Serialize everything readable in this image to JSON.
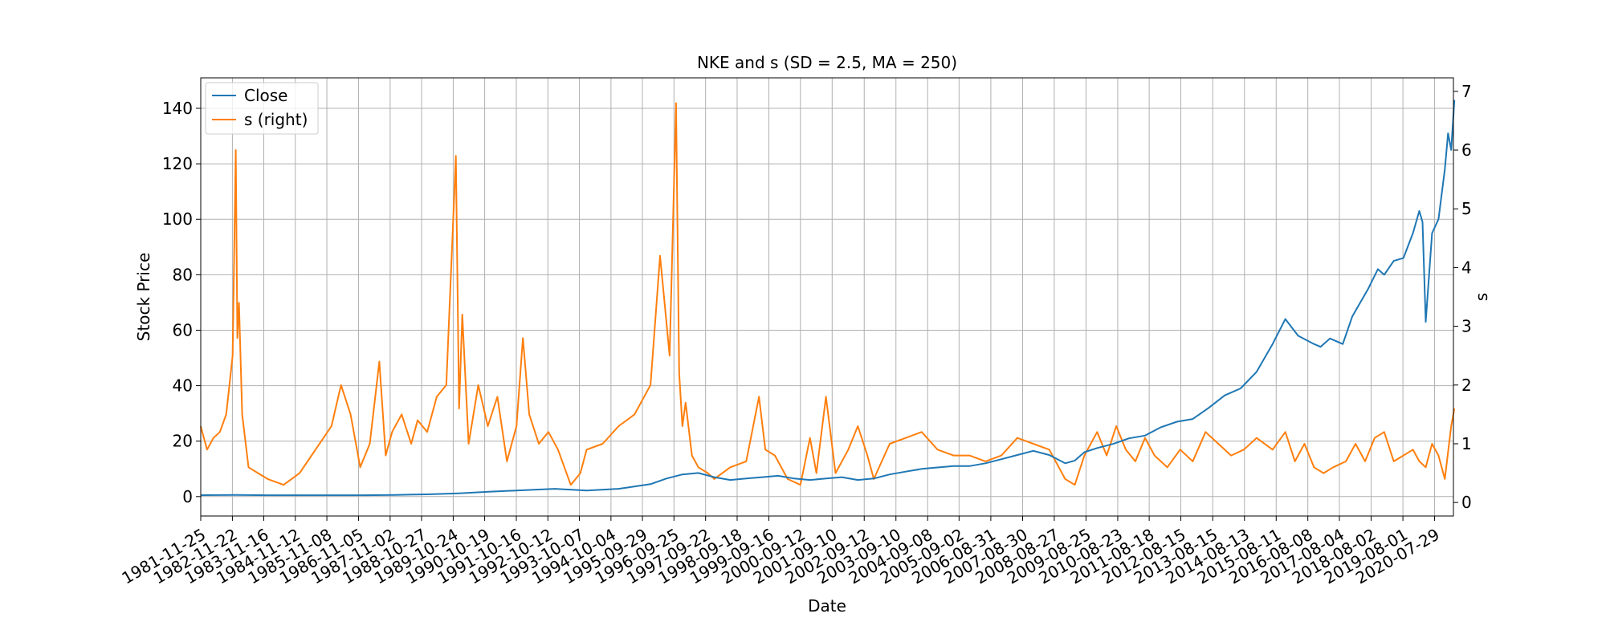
{
  "chart_data": {
    "type": "line",
    "title": "NKE and s (SD = 2.5, MA = 250)",
    "xlabel": "Date",
    "ylabel": "Stock Price",
    "y2label": "s",
    "grid": true,
    "legend_position": "top-left",
    "xlim": [
      "1981-11-25",
      "2021-03-01"
    ],
    "ylim": [
      -7,
      151
    ],
    "y2lim": [
      -0.23,
      7.23
    ],
    "yticks": [
      0,
      20,
      40,
      60,
      80,
      100,
      120,
      140
    ],
    "y2ticks": [
      0,
      1,
      2,
      3,
      4,
      5,
      6,
      7
    ],
    "xtick_labels": [
      "1981-11-25",
      "1982-11-22",
      "1983-11-16",
      "1984-11-12",
      "1985-11-08",
      "1986-11-05",
      "1987-11-02",
      "1988-10-27",
      "1989-10-24",
      "1990-10-19",
      "1991-10-16",
      "1992-10-12",
      "1993-10-07",
      "1994-10-04",
      "1995-09-29",
      "1996-09-25",
      "1997-09-22",
      "1998-09-18",
      "1999-09-16",
      "2000-09-12",
      "2001-09-10",
      "2002-09-12",
      "2003-09-10",
      "2004-09-08",
      "2005-09-02",
      "2006-08-31",
      "2007-08-30",
      "2008-08-27",
      "2009-08-25",
      "2010-08-23",
      "2011-08-18",
      "2012-08-15",
      "2013-08-15",
      "2014-08-13",
      "2015-08-11",
      "2016-08-08",
      "2017-08-04",
      "2018-08-02",
      "2019-08-01",
      "2020-07-29"
    ],
    "series": [
      {
        "name": "Close",
        "axis": "left",
        "color": "#1f77b4",
        "x": [
          1981.9,
          1983.0,
          1984.0,
          1985.0,
          1986.0,
          1987.0,
          1988.0,
          1989.0,
          1990.0,
          1991.0,
          1992.0,
          1993.0,
          1994.0,
          1995.0,
          1996.0,
          1996.5,
          1997.0,
          1997.5,
          1998.0,
          1998.5,
          1999.0,
          1999.5,
          2000.0,
          2000.5,
          2001.0,
          2001.5,
          2002.0,
          2002.5,
          2003.0,
          2003.5,
          2004.0,
          2004.5,
          2005.0,
          2005.5,
          2006.0,
          2006.5,
          2007.0,
          2007.5,
          2008.0,
          2008.5,
          2009.0,
          2009.3,
          2009.6,
          2010.0,
          2010.5,
          2011.0,
          2011.5,
          2012.0,
          2012.5,
          2013.0,
          2013.5,
          2014.0,
          2014.5,
          2015.0,
          2015.5,
          2015.9,
          2016.3,
          2016.8,
          2017.0,
          2017.3,
          2017.7,
          2018.0,
          2018.5,
          2018.8,
          2019.0,
          2019.3,
          2019.6,
          2019.9,
          2020.1,
          2020.2,
          2020.3,
          2020.5,
          2020.7,
          2020.9,
          2021.0,
          2021.1,
          2021.2
        ],
        "values": [
          0.5,
          0.6,
          0.5,
          0.5,
          0.5,
          0.5,
          0.6,
          0.8,
          1.2,
          1.8,
          2.3,
          2.8,
          2.2,
          2.8,
          4.5,
          6.5,
          8.0,
          8.5,
          7.0,
          6.0,
          6.5,
          7.0,
          7.5,
          6.5,
          6.0,
          6.5,
          7.0,
          6.0,
          6.5,
          8.0,
          9.0,
          10.0,
          10.5,
          11.0,
          11.0,
          12.0,
          13.5,
          15.0,
          16.5,
          15.0,
          12.0,
          13.0,
          16.0,
          17.5,
          19.0,
          21.0,
          22.0,
          25.0,
          27.0,
          28.0,
          32.0,
          36.5,
          39.0,
          45.0,
          55.0,
          64.0,
          58.0,
          55.0,
          54.0,
          57.0,
          55.0,
          65.0,
          75.0,
          82.0,
          80.0,
          85.0,
          86.0,
          95.0,
          103.0,
          99.0,
          63.0,
          95.0,
          100.0,
          118.0,
          131.0,
          125.0,
          143.0
        ]
      },
      {
        "name": "s (right)",
        "axis": "right",
        "color": "#ff7f0e",
        "x": [
          1981.9,
          1982.1,
          1982.3,
          1982.5,
          1982.7,
          1982.9,
          1983.0,
          1983.05,
          1983.1,
          1983.2,
          1983.4,
          1983.7,
          1984.0,
          1984.5,
          1985.0,
          1985.5,
          1986.0,
          1986.3,
          1986.6,
          1986.9,
          1987.2,
          1987.5,
          1987.7,
          1987.9,
          1988.2,
          1988.5,
          1988.7,
          1989.0,
          1989.3,
          1989.6,
          1989.9,
          1990.0,
          1990.1,
          1990.3,
          1990.6,
          1990.9,
          1991.2,
          1991.5,
          1991.8,
          1992.0,
          1992.2,
          1992.5,
          1992.8,
          1993.1,
          1993.5,
          1993.8,
          1994.0,
          1994.5,
          1995.0,
          1995.5,
          1996.0,
          1996.3,
          1996.6,
          1996.8,
          1996.9,
          1997.0,
          1997.1,
          1997.3,
          1997.5,
          1997.8,
          1998.0,
          1998.5,
          1999.0,
          1999.4,
          1999.6,
          1999.9,
          2000.3,
          2000.7,
          2001.0,
          2001.2,
          2001.5,
          2001.8,
          2002.2,
          2002.5,
          2002.8,
          2003.0,
          2003.5,
          2004.0,
          2004.5,
          2005.0,
          2005.5,
          2006.0,
          2006.5,
          2007.0,
          2007.5,
          2008.0,
          2008.5,
          2008.8,
          2009.0,
          2009.3,
          2009.6,
          2010.0,
          2010.3,
          2010.6,
          2010.9,
          2011.2,
          2011.5,
          2011.8,
          2012.2,
          2012.6,
          2013.0,
          2013.4,
          2013.8,
          2014.2,
          2014.6,
          2015.0,
          2015.5,
          2015.9,
          2016.2,
          2016.5,
          2016.8,
          2017.1,
          2017.4,
          2017.8,
          2018.1,
          2018.4,
          2018.7,
          2019.0,
          2019.3,
          2019.6,
          2019.9,
          2020.1,
          2020.3,
          2020.5,
          2020.7,
          2020.9,
          2021.1,
          2021.2
        ],
        "values": [
          1.3,
          0.9,
          1.1,
          1.2,
          1.5,
          2.5,
          6.0,
          2.8,
          3.4,
          1.5,
          0.6,
          0.5,
          0.4,
          0.3,
          0.5,
          0.9,
          1.3,
          2.0,
          1.5,
          0.6,
          1.0,
          2.4,
          0.8,
          1.2,
          1.5,
          1.0,
          1.4,
          1.2,
          1.8,
          2.0,
          5.9,
          1.6,
          3.2,
          1.0,
          2.0,
          1.3,
          1.8,
          0.7,
          1.3,
          2.8,
          1.5,
          1.0,
          1.2,
          0.9,
          0.3,
          0.5,
          0.9,
          1.0,
          1.3,
          1.5,
          2.0,
          4.2,
          2.5,
          6.8,
          2.2,
          1.3,
          1.7,
          0.8,
          0.6,
          0.5,
          0.4,
          0.6,
          0.7,
          1.8,
          0.9,
          0.8,
          0.4,
          0.3,
          1.1,
          0.5,
          1.8,
          0.5,
          0.9,
          1.3,
          0.8,
          0.4,
          1.0,
          1.1,
          1.2,
          0.9,
          0.8,
          0.8,
          0.7,
          0.8,
          1.1,
          1.0,
          0.9,
          0.6,
          0.4,
          0.3,
          0.8,
          1.2,
          0.8,
          1.3,
          0.9,
          0.7,
          1.1,
          0.8,
          0.6,
          0.9,
          0.7,
          1.2,
          1.0,
          0.8,
          0.9,
          1.1,
          0.9,
          1.2,
          0.7,
          1.0,
          0.6,
          0.5,
          0.6,
          0.7,
          1.0,
          0.7,
          1.1,
          1.2,
          0.7,
          0.8,
          0.9,
          0.7,
          0.6,
          1.0,
          0.8,
          0.4,
          1.3,
          1.6
        ]
      }
    ]
  }
}
